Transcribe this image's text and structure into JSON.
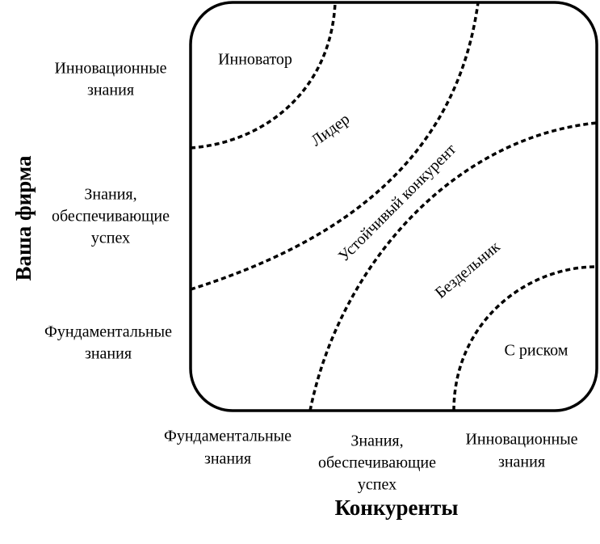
{
  "y_axis": {
    "title": "Ваша фирма",
    "levels": [
      [
        "Инновационные",
        "знания"
      ],
      [
        "Знания,",
        "обеспечивающие",
        "успех"
      ],
      [
        "Фундаментальные",
        "знания"
      ]
    ]
  },
  "x_axis": {
    "title": "Конкуренты",
    "levels": [
      [
        "Фундаментальные",
        "знания"
      ],
      [
        "Знания,",
        "обеспечивающие",
        "успех"
      ],
      [
        "Инновационные",
        "знания"
      ]
    ]
  },
  "regions": [
    "Инноватор",
    "Лидер",
    "Устойчивый конкурент",
    "Бездельник",
    "С риском"
  ]
}
